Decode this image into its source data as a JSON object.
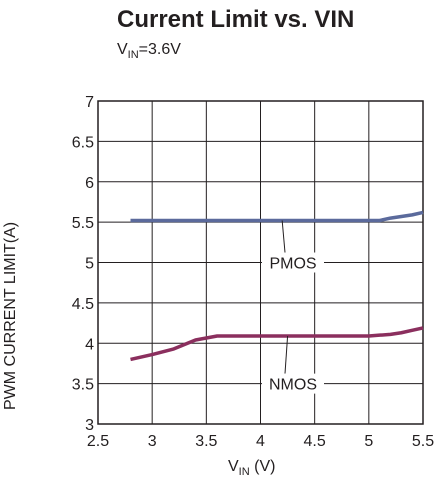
{
  "chart_data": {
    "type": "line",
    "title": "Current Limit vs. VIN",
    "subtitle": {
      "main": "V",
      "sub": "IN",
      "rest": "=3.6V"
    },
    "xlabel": {
      "main": "V",
      "sub": "IN",
      "rest": " (V)"
    },
    "ylabel": "PWM CURRENT LIMIT(A)",
    "xlim": [
      2.5,
      5.5
    ],
    "ylim": [
      3,
      7
    ],
    "x_ticks": [
      2.5,
      3,
      3.5,
      4,
      4.5,
      5,
      5.5
    ],
    "x_tick_labels": [
      "2.5",
      "3",
      "3.5",
      "4",
      "4.5",
      "5",
      "5.5"
    ],
    "y_ticks": [
      3,
      3.5,
      4,
      4.5,
      5,
      5.5,
      6,
      6.5,
      7
    ],
    "y_tick_labels": [
      "3",
      "3.5",
      "4",
      "4.5",
      "5",
      "5.5",
      "6",
      "6.5",
      "7"
    ],
    "grid": true,
    "series": [
      {
        "name": "PMOS",
        "color": "#5b6a9c",
        "x": [
          2.8,
          3.0,
          3.5,
          4.0,
          4.5,
          5.0,
          5.1,
          5.2,
          5.3,
          5.4,
          5.5
        ],
        "y": [
          5.52,
          5.52,
          5.52,
          5.52,
          5.52,
          5.52,
          5.52,
          5.55,
          5.57,
          5.59,
          5.62
        ]
      },
      {
        "name": "NMOS",
        "color": "#8b2f5e",
        "x": [
          2.8,
          3.0,
          3.2,
          3.4,
          3.6,
          4.0,
          4.5,
          5.0,
          5.1,
          5.2,
          5.3,
          5.4,
          5.5
        ],
        "y": [
          3.8,
          3.86,
          3.93,
          4.04,
          4.09,
          4.09,
          4.09,
          4.09,
          4.1,
          4.11,
          4.13,
          4.16,
          4.19
        ]
      }
    ],
    "annotations": [
      {
        "text": "PMOS",
        "series": "PMOS",
        "point_x": 4.2,
        "label_x": 4.3,
        "label_y": 5.0
      },
      {
        "text": "NMOS",
        "series": "NMOS",
        "point_x": 4.25,
        "label_x": 4.3,
        "label_y": 3.5
      }
    ]
  }
}
